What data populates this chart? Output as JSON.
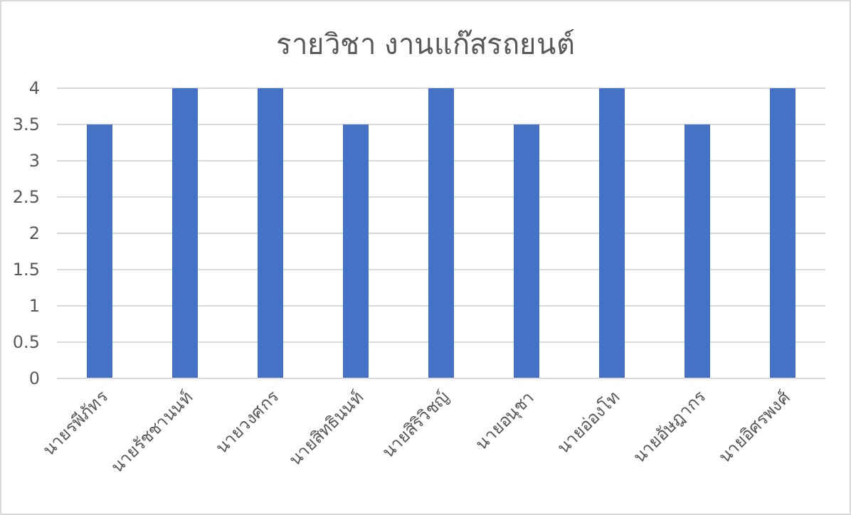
{
  "chart_data": {
    "type": "bar",
    "title": "รายวิชา งานแก๊สรถยนต์",
    "categories": [
      "นายรพีภัทร",
      "นายรัชชานนท์",
      "นายวงศกร",
      "นายสิทธินนท์",
      "นายสิริวิชญ์",
      "นายอนุชา",
      "นายอ่องโท",
      "นายอัษฎากร",
      "นายอิศรพงศ์"
    ],
    "values": [
      3.5,
      4,
      4,
      3.5,
      4,
      3.5,
      4,
      3.5,
      4
    ],
    "color": "#4472c4",
    "ylim": [
      0,
      4
    ],
    "yticks": [
      0,
      0.5,
      1,
      1.5,
      2,
      2.5,
      3,
      3.5,
      4
    ],
    "grid": "y"
  }
}
